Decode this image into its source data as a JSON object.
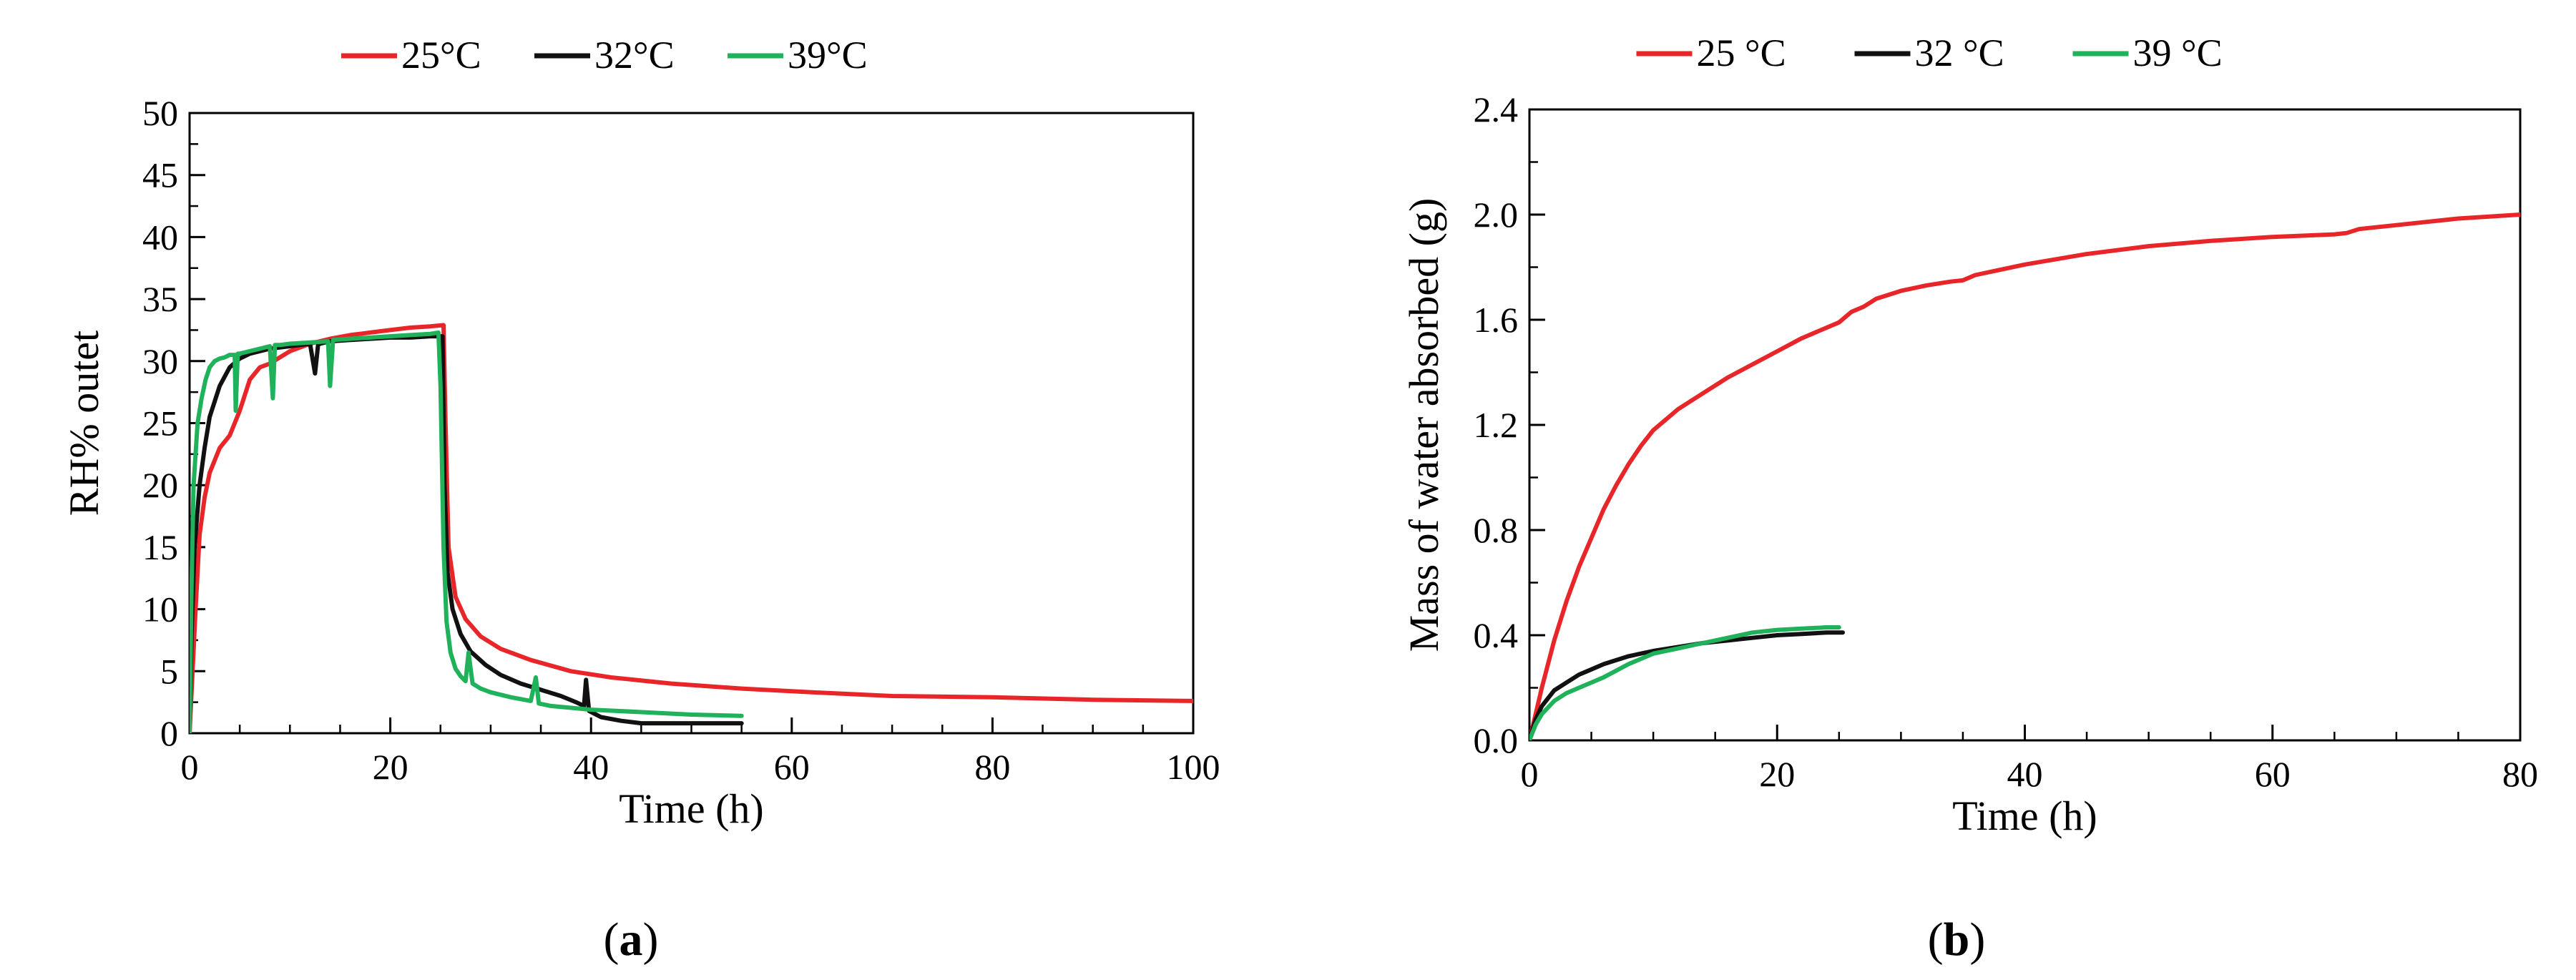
{
  "chart_data": [
    {
      "id": "a",
      "type": "line",
      "caption_letter": "a",
      "xlabel": "Time (h)",
      "ylabel": "RH% outet",
      "xlim": [
        0,
        100
      ],
      "ylim": [
        0,
        50
      ],
      "xticks": [
        0,
        20,
        40,
        60,
        80,
        100
      ],
      "yticks": [
        0,
        5,
        10,
        15,
        20,
        25,
        30,
        35,
        40,
        45,
        50
      ],
      "tick_decimals": 0,
      "legend": "top-center",
      "series": [
        {
          "name": "25°C",
          "color": "#e8262a",
          "x": [
            0,
            0.3,
            0.6,
            1,
            1.5,
            2,
            3,
            4,
            5,
            6,
            7,
            8,
            9,
            10,
            11,
            12,
            13,
            14,
            16,
            18,
            20,
            22,
            24,
            25.3,
            25.5,
            25.8,
            26.5,
            27.5,
            29,
            31,
            34,
            38,
            42,
            48,
            55,
            62,
            70,
            80,
            90,
            100
          ],
          "y": [
            0,
            5,
            10,
            16,
            19,
            21,
            23,
            24,
            26,
            28.5,
            29.5,
            29.8,
            30.3,
            30.8,
            31.1,
            31.4,
            31.6,
            31.8,
            32.1,
            32.3,
            32.5,
            32.7,
            32.8,
            32.9,
            25,
            15,
            11,
            9.2,
            7.8,
            6.8,
            5.9,
            5.0,
            4.5,
            4.0,
            3.6,
            3.3,
            3.0,
            2.9,
            2.7,
            2.6
          ]
        },
        {
          "name": "32°C",
          "color": "#111111",
          "x": [
            0,
            0.2,
            0.5,
            1,
            1.5,
            2,
            3,
            4,
            5,
            6,
            8,
            10,
            12,
            12.5,
            12.8,
            13,
            14,
            16,
            18,
            20,
            22,
            24,
            25.2,
            25.4,
            25.7,
            26.2,
            27,
            28,
            29.5,
            31,
            33,
            35,
            37,
            38.5,
            39.3,
            39.5,
            39.8,
            41,
            43,
            45,
            48,
            52,
            55
          ],
          "y": [
            0,
            8,
            15,
            20,
            23,
            25.5,
            28,
            29.5,
            30.2,
            30.6,
            31,
            31.2,
            31.4,
            29,
            31.3,
            31.4,
            31.6,
            31.7,
            31.8,
            31.9,
            31.9,
            32,
            32,
            20,
            13,
            10,
            8,
            6.6,
            5.5,
            4.7,
            4.0,
            3.5,
            3.0,
            2.5,
            2.2,
            4.3,
            1.8,
            1.3,
            1.0,
            0.8,
            0.8,
            0.8,
            0.8
          ]
        },
        {
          "name": "39°C",
          "color": "#1fb25a",
          "x": [
            0,
            0.2,
            0.4,
            0.8,
            1.2,
            1.6,
            2,
            2.5,
            3,
            3.5,
            4,
            4.5,
            4.6,
            4.8,
            5,
            6,
            7,
            8,
            8.3,
            8.5,
            9,
            10,
            12,
            13.8,
            14,
            14.3,
            16,
            18,
            20,
            22,
            24,
            24.8,
            25,
            25.3,
            25.6,
            26,
            26.5,
            27,
            27.5,
            27.8,
            28.2,
            29,
            30,
            32,
            34,
            34.5,
            34.8,
            36,
            40,
            45,
            50,
            55
          ],
          "y": [
            0,
            12,
            20,
            25,
            27,
            28.5,
            29.5,
            30,
            30.2,
            30.3,
            30.5,
            30.5,
            26,
            30.6,
            30.6,
            30.8,
            31,
            31.2,
            27,
            31.3,
            31.3,
            31.4,
            31.5,
            31.6,
            28,
            31.7,
            31.8,
            31.9,
            32,
            32.1,
            32.2,
            32.3,
            28,
            15,
            9,
            6.5,
            5.2,
            4.6,
            4.2,
            6.5,
            4.0,
            3.6,
            3.3,
            2.9,
            2.6,
            4.5,
            2.4,
            2.2,
            1.9,
            1.7,
            1.5,
            1.4
          ]
        }
      ]
    },
    {
      "id": "b",
      "type": "line",
      "caption_letter": "b",
      "xlabel": "Time (h)",
      "ylabel": "Mass of water absorbed (g)",
      "xlim": [
        0,
        80
      ],
      "ylim": [
        0,
        2.4
      ],
      "xticks": [
        0,
        20,
        40,
        60,
        80
      ],
      "yticks": [
        0,
        0.4,
        0.8,
        1.2,
        1.6,
        2.0,
        2.4
      ],
      "tick_decimals": 1,
      "legend": "top-center",
      "series": [
        {
          "name": "25 °C",
          "color": "#e8262a",
          "x": [
            0,
            0.5,
            1,
            2,
            3,
            4,
            5,
            6,
            7,
            8,
            9,
            10,
            12,
            14,
            16,
            18,
            20,
            22,
            24,
            25,
            26,
            27,
            28,
            30,
            32,
            34,
            35,
            36,
            40,
            45,
            50,
            55,
            60,
            65,
            66,
            67,
            70,
            75,
            80
          ],
          "y": [
            0,
            0.1,
            0.2,
            0.38,
            0.53,
            0.66,
            0.77,
            0.88,
            0.97,
            1.05,
            1.12,
            1.18,
            1.26,
            1.32,
            1.38,
            1.43,
            1.48,
            1.53,
            1.57,
            1.59,
            1.63,
            1.65,
            1.68,
            1.71,
            1.73,
            1.745,
            1.75,
            1.77,
            1.81,
            1.85,
            1.88,
            1.9,
            1.915,
            1.925,
            1.93,
            1.945,
            1.96,
            1.985,
            2.0
          ]
        },
        {
          "name": "32 °C",
          "color": "#111111",
          "x": [
            0,
            0.5,
            1,
            2,
            3,
            4,
            5,
            6,
            8,
            10,
            12,
            14,
            16,
            18,
            20,
            22,
            24,
            25.3
          ],
          "y": [
            0,
            0.08,
            0.13,
            0.19,
            0.22,
            0.25,
            0.27,
            0.29,
            0.32,
            0.34,
            0.355,
            0.37,
            0.38,
            0.39,
            0.4,
            0.405,
            0.41,
            0.41
          ]
        },
        {
          "name": "39 °C",
          "color": "#1fb25a",
          "x": [
            0,
            0.5,
            1,
            2,
            3,
            4,
            5,
            6,
            8,
            10,
            12,
            14,
            16,
            18,
            20,
            22,
            24,
            25
          ],
          "y": [
            0,
            0.06,
            0.1,
            0.15,
            0.18,
            0.2,
            0.22,
            0.24,
            0.29,
            0.33,
            0.35,
            0.37,
            0.39,
            0.41,
            0.42,
            0.425,
            0.43,
            0.43
          ]
        }
      ]
    }
  ]
}
